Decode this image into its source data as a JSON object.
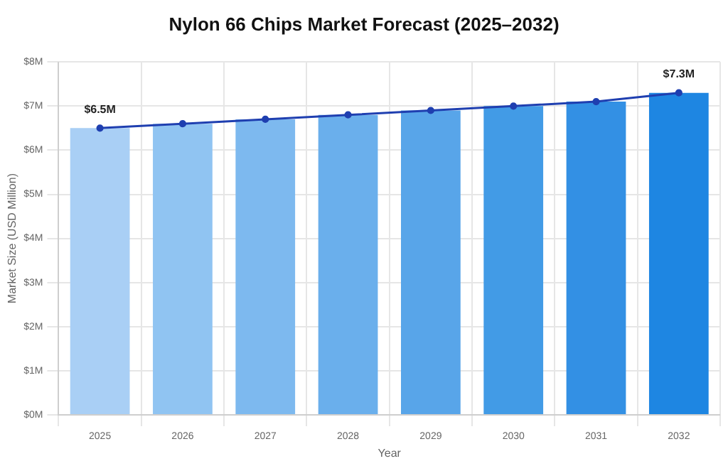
{
  "chart_data": {
    "type": "bar",
    "title": "Nylon 66 Chips Market Forecast (2025–2032)",
    "xlabel": "Year",
    "ylabel": "Market Size (USD Million)",
    "categories": [
      "2025",
      "2026",
      "2027",
      "2028",
      "2029",
      "2030",
      "2031",
      "2032"
    ],
    "series": [
      {
        "colors": [
          "#a9cff5",
          "#90c4f2",
          "#7db9ef",
          "#6aafec",
          "#58a5e9",
          "#429be6",
          "#3390e4",
          "#1e86e2"
        ],
        "values": [
          6.5,
          6.6,
          6.7,
          6.8,
          6.9,
          7.0,
          7.1,
          7.3
        ],
        "value_labels": [
          "$6.5M",
          null,
          null,
          null,
          null,
          null,
          null,
          "$7.3M"
        ]
      },
      {
        "type": "line",
        "color": "#1f3fb0",
        "marker": "circle",
        "values": [
          6.5,
          6.6,
          6.7,
          6.8,
          6.9,
          7.0,
          7.1,
          7.3
        ]
      }
    ],
    "ylim": [
      0,
      8
    ],
    "yticks": [
      {
        "value": 0,
        "label": "$0M"
      },
      {
        "value": 1,
        "label": "$1M"
      },
      {
        "value": 2,
        "label": "$2M"
      },
      {
        "value": 3,
        "label": "$3M"
      },
      {
        "value": 4,
        "label": "$4M"
      },
      {
        "value": 5,
        "label": "$5M"
      },
      {
        "value": 6,
        "label": "$6M"
      },
      {
        "value": 7,
        "label": "$7M"
      },
      {
        "value": 8,
        "label": "$8M"
      }
    ],
    "grid": true,
    "legend": false
  }
}
